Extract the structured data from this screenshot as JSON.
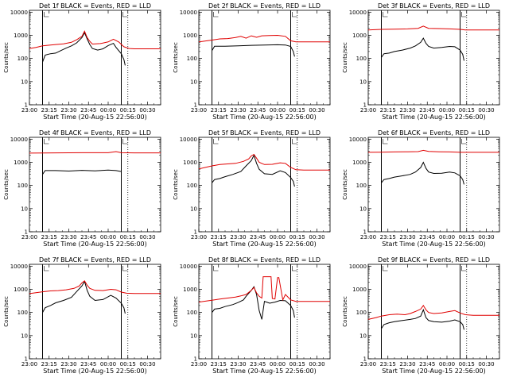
{
  "figure": {
    "x_tick_labels": [
      "23:00",
      "23:15",
      "23:30",
      "23:45",
      "00:00",
      "00:15",
      "00:30"
    ],
    "y_tick_labels": [
      "1",
      "10",
      "100",
      "1000",
      "10000"
    ],
    "xlabel": "Start Time (20-Aug-15 22:56:00)",
    "ylabel": "Counts/sec"
  },
  "colors": {
    "events": "#000000",
    "lld": "#e00000",
    "axes": "#000000"
  },
  "chart_data": [
    {
      "type": "line",
      "title": "Det 1f BLACK = Events, RED = LLD",
      "xlabel": "Start Time (20-Aug-15 22:56:00)",
      "ylabel": "Counts/sec",
      "x_unit": "minutes after 23:00",
      "xlim": [
        0,
        100
      ],
      "ylim": [
        1,
        12000
      ],
      "y_scale": "log",
      "vlines": [
        10,
        70
      ],
      "dotted_vlines": [
        75
      ],
      "scale": "log",
      "series": [
        {
          "name": "BLACK",
          "x": [
            10,
            12,
            16,
            20,
            24,
            28,
            32,
            36,
            40,
            42,
            44,
            46,
            48,
            52,
            56,
            60,
            64,
            66,
            70,
            72,
            73
          ],
          "y": [
            70,
            140,
            160,
            170,
            220,
            280,
            350,
            470,
            800,
            1300,
            700,
            400,
            270,
            230,
            260,
            360,
            450,
            300,
            160,
            90,
            50
          ]
        },
        {
          "name": "RED",
          "x": [
            0,
            5,
            10,
            16,
            20,
            26,
            32,
            36,
            40,
            42,
            44,
            46,
            48,
            54,
            60,
            64,
            68,
            72,
            76,
            80,
            90,
            100
          ],
          "y": [
            270,
            300,
            350,
            380,
            400,
            430,
            500,
            640,
            900,
            1500,
            800,
            550,
            420,
            440,
            520,
            680,
            520,
            320,
            270,
            260,
            260,
            260
          ]
        }
      ]
    },
    {
      "type": "line",
      "title": "Det 2f BLACK = Events, RED = LLD",
      "xlabel": "Start Time (20-Aug-15 22:56:00)",
      "ylabel": "Counts/sec",
      "x_unit": "minutes after 23:00",
      "xlim": [
        0,
        100
      ],
      "ylim": [
        1,
        12000
      ],
      "y_scale": "log",
      "vlines": [
        10,
        70
      ],
      "dotted_vlines": [
        75
      ],
      "series": [
        {
          "name": "BLACK",
          "x": [
            10,
            12,
            20,
            30,
            40,
            50,
            60,
            66,
            70,
            72,
            73
          ],
          "y": [
            220,
            340,
            340,
            350,
            370,
            380,
            390,
            380,
            330,
            200,
            120
          ]
        },
        {
          "name": "RED",
          "x": [
            0,
            10,
            16,
            22,
            28,
            32,
            36,
            40,
            44,
            48,
            54,
            60,
            66,
            70,
            74,
            80,
            100
          ],
          "y": [
            520,
            620,
            700,
            720,
            800,
            900,
            750,
            950,
            820,
            950,
            980,
            1000,
            900,
            580,
            520,
            520,
            520
          ]
        }
      ]
    },
    {
      "type": "line",
      "title": "Det 3f BLACK = Events, RED = LLD",
      "xlabel": "Start Time (20-Aug-15 22:56:00)",
      "ylabel": "Counts/sec",
      "x_unit": "minutes after 23:00",
      "xlim": [
        0,
        100
      ],
      "ylim": [
        1,
        12000
      ],
      "y_scale": "log",
      "vlines": [
        10,
        70
      ],
      "dotted_vlines": [
        75
      ],
      "series": [
        {
          "name": "BLACK",
          "x": [
            10,
            12,
            16,
            20,
            26,
            32,
            36,
            40,
            42,
            44,
            46,
            50,
            56,
            62,
            66,
            70,
            72,
            73
          ],
          "y": [
            110,
            160,
            170,
            200,
            230,
            280,
            350,
            500,
            750,
            450,
            330,
            280,
            300,
            330,
            320,
            230,
            150,
            80
          ]
        },
        {
          "name": "RED",
          "x": [
            0,
            10,
            20,
            30,
            38,
            42,
            46,
            54,
            62,
            70,
            74,
            80,
            100
          ],
          "y": [
            1700,
            1800,
            1850,
            1900,
            2000,
            2500,
            2000,
            1950,
            1900,
            1800,
            1700,
            1700,
            1700
          ]
        }
      ]
    },
    {
      "type": "line",
      "title": "Det 4f BLACK = Events, RED = LLD",
      "xlabel": "Start Time (20-Aug-15 22:56:00)",
      "ylabel": "Counts/sec",
      "x_unit": "minutes after 23:00",
      "xlim": [
        0,
        100
      ],
      "ylim": [
        1,
        12000
      ],
      "y_scale": "log",
      "vlines": [
        10,
        70
      ],
      "dotted_vlines": [
        75
      ],
      "series": [
        {
          "name": "BLACK",
          "x": [
            10,
            12,
            20,
            30,
            40,
            50,
            60,
            66,
            70
          ],
          "y": [
            300,
            440,
            440,
            420,
            450,
            430,
            460,
            440,
            400
          ]
        },
        {
          "name": "RED",
          "x": [
            0,
            20,
            40,
            60,
            66,
            70,
            80,
            100
          ],
          "y": [
            2500,
            2550,
            2600,
            2600,
            2900,
            2600,
            2550,
            2550
          ]
        }
      ]
    },
    {
      "type": "line",
      "title": "Det 5f BLACK = Events, RED = LLD",
      "xlabel": "Start Time (20-Aug-15 22:56:00)",
      "ylabel": "Counts/sec",
      "x_unit": "minutes after 23:00",
      "xlim": [
        0,
        100
      ],
      "ylim": [
        1,
        12000
      ],
      "y_scale": "log",
      "vlines": [
        10,
        70
      ],
      "dotted_vlines": [
        75
      ],
      "series": [
        {
          "name": "BLACK",
          "x": [
            10,
            12,
            16,
            20,
            26,
            32,
            36,
            40,
            42,
            44,
            46,
            50,
            56,
            62,
            66,
            70,
            72,
            73
          ],
          "y": [
            130,
            180,
            200,
            240,
            300,
            400,
            700,
            1200,
            2000,
            900,
            500,
            320,
            300,
            430,
            360,
            220,
            150,
            90
          ]
        },
        {
          "name": "RED",
          "x": [
            0,
            10,
            16,
            22,
            28,
            34,
            38,
            40,
            42,
            44,
            46,
            50,
            56,
            62,
            66,
            70,
            74,
            80,
            100
          ],
          "y": [
            520,
            700,
            800,
            850,
            900,
            1100,
            1400,
            1900,
            2200,
            1500,
            1000,
            800,
            820,
            950,
            900,
            600,
            480,
            460,
            460
          ]
        }
      ]
    },
    {
      "type": "line",
      "title": "Det 6f BLACK = Events, RED = LLD",
      "xlabel": "Start Time (20-Aug-15 22:56:00)",
      "ylabel": "Counts/sec",
      "x_unit": "minutes after 23:00",
      "xlim": [
        0,
        100
      ],
      "ylim": [
        1,
        12000
      ],
      "y_scale": "log",
      "vlines": [
        10,
        70
      ],
      "dotted_vlines": [
        75
      ],
      "series": [
        {
          "name": "BLACK",
          "x": [
            10,
            12,
            16,
            20,
            26,
            32,
            36,
            40,
            42,
            44,
            46,
            50,
            56,
            62,
            66,
            70,
            72,
            73
          ],
          "y": [
            130,
            180,
            200,
            230,
            260,
            300,
            380,
            600,
            1000,
            550,
            380,
            330,
            340,
            380,
            350,
            260,
            180,
            110
          ]
        },
        {
          "name": "RED",
          "x": [
            0,
            10,
            20,
            30,
            38,
            42,
            46,
            54,
            62,
            70,
            80,
            100
          ],
          "y": [
            2700,
            2750,
            2800,
            2850,
            2900,
            3300,
            2950,
            2850,
            2800,
            2700,
            2700,
            2700
          ]
        }
      ]
    },
    {
      "type": "line",
      "title": "Det 7f BLACK = Events, RED = LLD",
      "xlabel": "Start Time (20-Aug-15 22:56:00)",
      "ylabel": "Counts/sec",
      "x_unit": "minutes after 23:00",
      "xlim": [
        0,
        100
      ],
      "ylim": [
        1,
        12000
      ],
      "y_scale": "log",
      "vlines": [
        10,
        70
      ],
      "dotted_vlines": [
        75
      ],
      "series": [
        {
          "name": "BLACK",
          "x": [
            10,
            12,
            16,
            20,
            26,
            32,
            36,
            40,
            42,
            44,
            46,
            50,
            56,
            62,
            66,
            70,
            72,
            73
          ],
          "y": [
            100,
            160,
            200,
            260,
            330,
            450,
            800,
            1400,
            2200,
            900,
            500,
            330,
            360,
            550,
            420,
            250,
            160,
            90
          ]
        },
        {
          "name": "RED",
          "x": [
            0,
            10,
            16,
            22,
            28,
            34,
            38,
            40,
            42,
            44,
            46,
            50,
            56,
            62,
            66,
            70,
            74,
            80,
            100
          ],
          "y": [
            650,
            780,
            850,
            880,
            950,
            1100,
            1400,
            1900,
            2300,
            1500,
            1100,
            900,
            880,
            1000,
            950,
            760,
            680,
            660,
            660
          ]
        }
      ]
    },
    {
      "type": "line",
      "title": "Det 8f BLACK = Events, RED = LLD",
      "xlabel": "Start Time (20-Aug-15 22:56:00)",
      "ylabel": "Counts/sec",
      "x_unit": "minutes after 23:00",
      "xlim": [
        0,
        100
      ],
      "ylim": [
        1,
        12000
      ],
      "y_scale": "log",
      "vlines": [
        10,
        70
      ],
      "dotted_vlines": [
        75
      ],
      "series": [
        {
          "name": "BLACK",
          "x": [
            10,
            12,
            16,
            20,
            26,
            30,
            34,
            36,
            40,
            42,
            44,
            46,
            48,
            50,
            54,
            58,
            62,
            66,
            70,
            72,
            73
          ],
          "y": [
            100,
            140,
            150,
            180,
            220,
            270,
            350,
            500,
            900,
            1300,
            600,
            120,
            50,
            300,
            250,
            280,
            330,
            320,
            200,
            120,
            60
          ]
        },
        {
          "name": "RED",
          "x": [
            0,
            10,
            16,
            22,
            28,
            32,
            36,
            40,
            42,
            44,
            46,
            48,
            49,
            52,
            55,
            56,
            58,
            60,
            61,
            64,
            66,
            70,
            74,
            80,
            100
          ],
          "y": [
            280,
            340,
            380,
            420,
            460,
            520,
            600,
            900,
            1200,
            700,
            500,
            420,
            3500,
            3500,
            3500,
            400,
            380,
            3200,
            3200,
            350,
            600,
            350,
            300,
            300,
            300
          ]
        }
      ]
    },
    {
      "type": "line",
      "title": "Det 9f BLACK = Events, RED = LLD",
      "xlabel": "Start Time (20-Aug-15 22:56:00)",
      "ylabel": "Counts/sec",
      "x_unit": "minutes after 23:00",
      "xlim": [
        0,
        100
      ],
      "ylim": [
        1,
        12000
      ],
      "y_scale": "log",
      "vlines": [
        10,
        70
      ],
      "dotted_vlines": [
        75
      ],
      "series": [
        {
          "name": "BLACK",
          "x": [
            10,
            12,
            16,
            20,
            26,
            32,
            36,
            40,
            42,
            44,
            46,
            50,
            56,
            62,
            66,
            70,
            72,
            73
          ],
          "y": [
            20,
            30,
            36,
            40,
            45,
            50,
            55,
            70,
            130,
            60,
            45,
            40,
            38,
            42,
            48,
            40,
            30,
            18
          ]
        },
        {
          "name": "RED",
          "x": [
            0,
            6,
            10,
            16,
            22,
            28,
            32,
            36,
            40,
            42,
            44,
            46,
            50,
            56,
            62,
            66,
            70,
            74,
            80,
            100
          ],
          "y": [
            50,
            60,
            70,
            80,
            85,
            80,
            90,
            110,
            140,
            200,
            130,
            100,
            90,
            95,
            110,
            120,
            95,
            80,
            75,
            75
          ]
        }
      ]
    }
  ]
}
